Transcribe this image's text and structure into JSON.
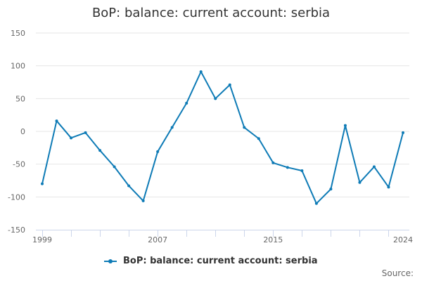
{
  "chart_data": {
    "type": "line",
    "title": "BoP: balance: current account: serbia",
    "xlabel": "",
    "ylabel": "",
    "ylim": [
      -150,
      150
    ],
    "xlim": [
      1999,
      2024
    ],
    "y_ticks": [
      150,
      100,
      50,
      0,
      -50,
      -100,
      -150
    ],
    "y_tick_labels": [
      "150",
      "100",
      "50",
      "0",
      "-50",
      "-100",
      "-150"
    ],
    "x_ticks": [
      1999,
      2007,
      2015,
      2024
    ],
    "x_tick_labels": [
      "1999",
      "2007",
      "2015",
      "2024"
    ],
    "grid": true,
    "legend_position": "bottom-center",
    "series": [
      {
        "name": "BoP: balance: current account: serbia",
        "color": "#0e7bb6",
        "x": [
          1999,
          2000,
          2001,
          2002,
          2003,
          2004,
          2005,
          2006,
          2007,
          2008,
          2009,
          2010,
          2011,
          2012,
          2013,
          2014,
          2015,
          2016,
          2017,
          2018,
          2019,
          2020,
          2021,
          2022,
          2023,
          2024
        ],
        "values": [
          -80,
          16,
          -10,
          -2,
          -29,
          -54,
          -83,
          -106,
          -31,
          6,
          43,
          91,
          50,
          71,
          6,
          -11,
          -48,
          -55,
          -60,
          -110,
          -88,
          9,
          -78,
          -54,
          -85,
          -2
        ]
      }
    ]
  },
  "legend": {
    "label": "BoP: balance: current account: serbia"
  },
  "footer": {
    "source_label": "Source:"
  }
}
